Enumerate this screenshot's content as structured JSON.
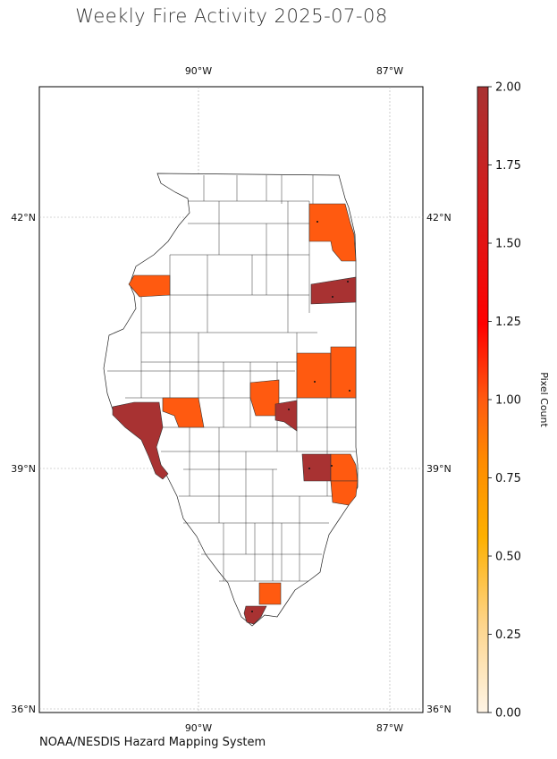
{
  "title": "Weekly Fire Activity 2025-07-08",
  "source": "NOAA/NESDIS Hazard Mapping System",
  "chart_data": {
    "type": "choropleth",
    "region": "Illinois counties",
    "lon_ticks": [
      {
        "value": -90,
        "label": "90°W"
      },
      {
        "value": -87,
        "label": "87°W"
      }
    ],
    "lat_ticks": [
      {
        "value": 42,
        "label": "42°N"
      },
      {
        "value": 39,
        "label": "39°N"
      },
      {
        "value": 36,
        "label": "36°N"
      }
    ],
    "xlim": [
      -92.5,
      -86.5
    ],
    "ylim": [
      35.9,
      43.4
    ],
    "grid": true,
    "colorbar": {
      "label": "Pixel Count",
      "min": 0,
      "max": 2,
      "ticks": [
        "0.00",
        "0.25",
        "0.50",
        "0.75",
        "1.00",
        "1.25",
        "1.50",
        "1.75",
        "2.00"
      ],
      "colors": [
        "#fff5e6",
        "#fdd58c",
        "#fdb000",
        "#ff8000",
        "#ff5a10",
        "#ff0000",
        "#d81a1a",
        "#a83232"
      ]
    },
    "highlighted_counties": [
      {
        "value": 1,
        "area": "NE (Cook/Lake)"
      },
      {
        "value": 1,
        "area": "NE lake shore"
      },
      {
        "value": 1,
        "area": "NW (Rock Island)"
      },
      {
        "value": 2,
        "area": "Kankakee/Iroquois area"
      },
      {
        "value": 1,
        "area": "East central (Champaign)"
      },
      {
        "value": 1,
        "area": "East central (Vermilion)"
      },
      {
        "value": 1,
        "area": "Central (Sangamon)"
      },
      {
        "value": 2,
        "area": "Central (Christian)"
      },
      {
        "value": 1,
        "area": "West central (Morgan)"
      },
      {
        "value": 2,
        "area": "West (Adams/Pike)"
      },
      {
        "value": 2,
        "area": "East (Jasper/Crawford)"
      },
      {
        "value": 1,
        "area": "East (Lawrence)"
      },
      {
        "value": 1,
        "area": "SE (Wabash)"
      },
      {
        "value": 1,
        "area": "South (Johnson)"
      },
      {
        "value": 2,
        "area": "South (Alexander/Pulaski)"
      }
    ]
  }
}
